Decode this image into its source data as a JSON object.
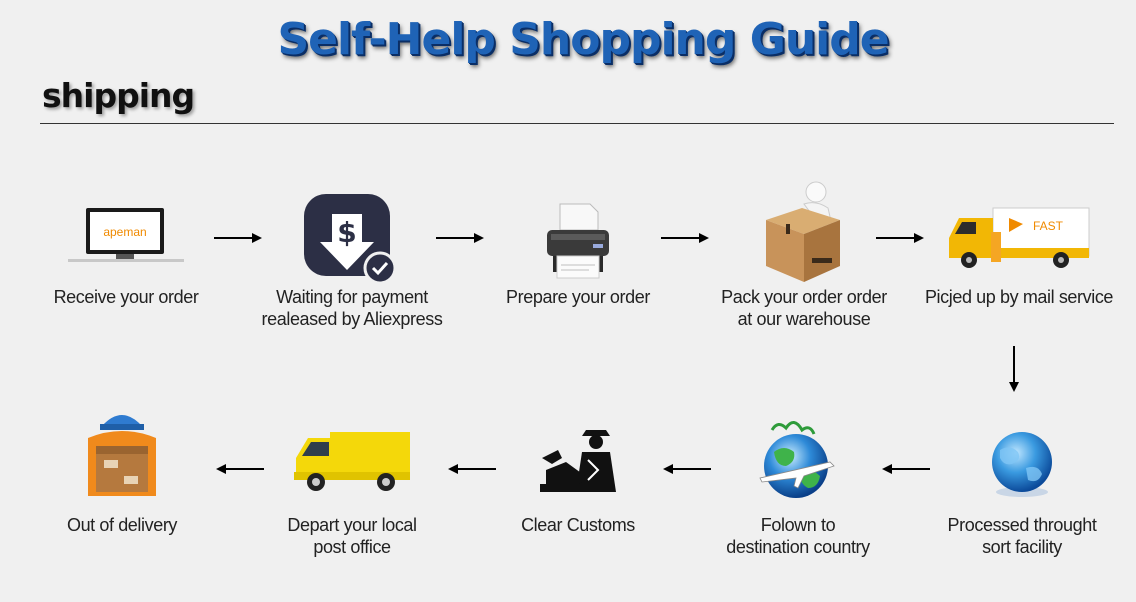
{
  "title": "Self-Help Shopping Guide",
  "section": "shipping",
  "row1": [
    {
      "id": "receive",
      "lines": [
        "Receive your order"
      ],
      "icon": "monitor-icon",
      "logo_text": "apeman"
    },
    {
      "id": "payment",
      "lines": [
        "Waiting for payment",
        "realeased by Aliexpress"
      ],
      "icon": "dollar-download-icon"
    },
    {
      "id": "prepare",
      "lines": [
        "Prepare your order"
      ],
      "icon": "printer-icon"
    },
    {
      "id": "pack",
      "lines": [
        "Pack your order order",
        "at our warehouse"
      ],
      "icon": "package-icon"
    },
    {
      "id": "pickup",
      "lines": [
        "Picjed up by mail service"
      ],
      "icon": "delivery-truck-icon",
      "truck_text": "FAST"
    }
  ],
  "row2": [
    {
      "id": "sort",
      "lines": [
        "Processed throught",
        "sort facility"
      ],
      "icon": "globe-icon"
    },
    {
      "id": "flown",
      "lines": [
        "Folown to",
        "destination country"
      ],
      "icon": "globe-airplane-icon"
    },
    {
      "id": "customs",
      "lines": [
        "Clear Customs"
      ],
      "icon": "customs-officer-icon"
    },
    {
      "id": "depart",
      "lines": [
        "Depart your local",
        "post office"
      ],
      "icon": "yellow-van-icon"
    },
    {
      "id": "out",
      "lines": [
        "Out of delivery"
      ],
      "icon": "courier-icon"
    }
  ]
}
